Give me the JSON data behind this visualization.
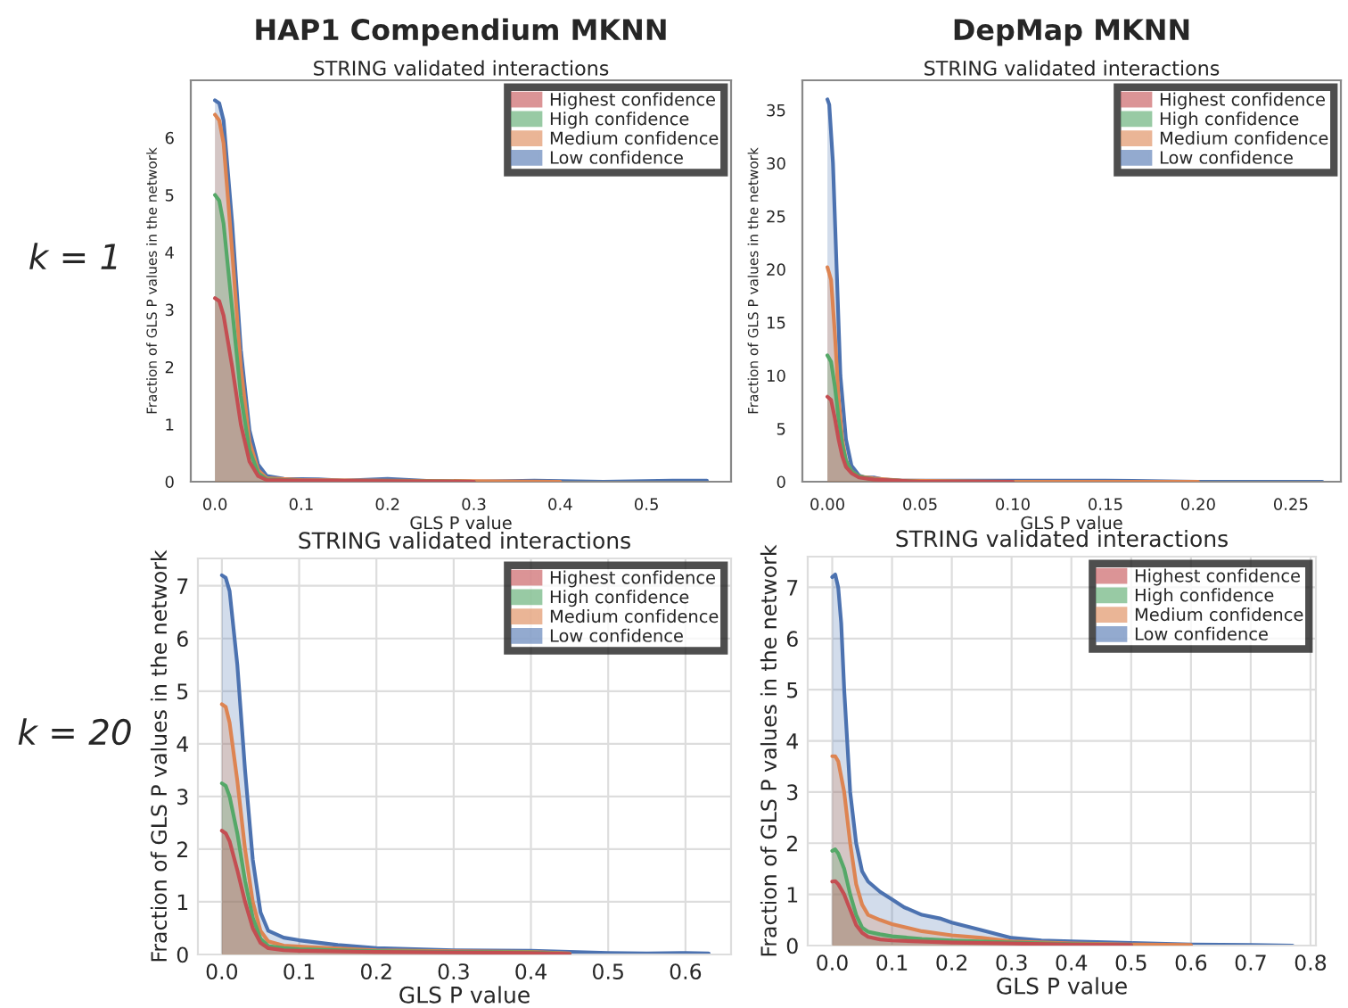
{
  "chart_data": [
    {
      "type": "area",
      "title": "HAP1 Compendium MKNN",
      "subtitle": "STRING validated interactions",
      "xlabel": "GLS P value",
      "ylabel": "Fraction of GLS P values in the network",
      "annotations": [
        "k = 1"
      ],
      "grid": false,
      "legend": "top right",
      "xlim": [
        -0.028,
        0.598
      ],
      "ylim": [
        0,
        7.0
      ],
      "xticks": [
        {
          "value": 0,
          "label": "0.0"
        },
        0.1,
        0.2,
        0.3,
        0.4,
        0.5
      ],
      "yticks": [
        0,
        1,
        2,
        3,
        4,
        5,
        6
      ],
      "series": [
        {
          "name": "Highest confidence",
          "color": "#c44e52",
          "x": [
            0,
            0.005,
            0.01,
            0.02,
            0.03,
            0.04,
            0.05,
            0.06,
            0.1,
            0.2,
            0.3
          ],
          "values": [
            3.2,
            3.15,
            2.9,
            2.0,
            1.0,
            0.35,
            0.1,
            0.03,
            0.02,
            0.01,
            0
          ]
        },
        {
          "name": "High confidence",
          "color": "#55a868",
          "x": [
            0,
            0.005,
            0.01,
            0.02,
            0.03,
            0.04,
            0.05,
            0.06,
            0.1,
            0.2,
            0.3
          ],
          "values": [
            5.0,
            4.9,
            4.5,
            3.0,
            1.5,
            0.55,
            0.15,
            0.04,
            0.02,
            0.01,
            0
          ]
        },
        {
          "name": "Medium confidence",
          "color": "#dd8452",
          "x": [
            0,
            0.005,
            0.01,
            0.02,
            0.03,
            0.04,
            0.05,
            0.06,
            0.1,
            0.2,
            0.3,
            0.4
          ],
          "values": [
            6.4,
            6.3,
            5.9,
            4.0,
            2.0,
            0.7,
            0.2,
            0.06,
            0.03,
            0.02,
            0.01,
            0
          ]
        },
        {
          "name": "Low confidence",
          "color": "#4c72b0",
          "x": [
            0,
            0.005,
            0.01,
            0.02,
            0.03,
            0.04,
            0.05,
            0.06,
            0.08,
            0.12,
            0.15,
            0.2,
            0.25,
            0.3,
            0.37,
            0.45,
            0.53,
            0.57
          ],
          "values": [
            6.65,
            6.6,
            6.3,
            4.5,
            2.3,
            0.9,
            0.3,
            0.1,
            0.05,
            0.04,
            0.02,
            0.05,
            0.01,
            0,
            0.02,
            0,
            0.02,
            0.02
          ]
        }
      ]
    },
    {
      "type": "area",
      "title": "DepMap MKNN",
      "subtitle": "STRING validated interactions",
      "xlabel": "GLS P value",
      "ylabel": "Fraction of GLS P values in the network",
      "grid": false,
      "legend": "top right",
      "xlim": [
        -0.0135,
        0.277
      ],
      "ylim": [
        0,
        37.8
      ],
      "xticks": [
        {
          "value": 0,
          "label": "0.00"
        },
        {
          "value": 0.05,
          "label": "0.05"
        },
        {
          "value": 0.1,
          "label": "0.10"
        },
        {
          "value": 0.15,
          "label": "0.15"
        },
        {
          "value": 0.2,
          "label": "0.20"
        },
        {
          "value": 0.25,
          "label": "0.25"
        }
      ],
      "yticks": [
        0,
        5,
        10,
        15,
        20,
        25,
        30,
        35
      ],
      "series": [
        {
          "name": "Highest confidence",
          "color": "#c44e52",
          "x": [
            0,
            0.002,
            0.004,
            0.006,
            0.008,
            0.01,
            0.013,
            0.017,
            0.025,
            0.05,
            0.1
          ],
          "values": [
            8,
            7.7,
            6,
            4,
            2.4,
            1.4,
            0.8,
            0.4,
            0.2,
            0,
            0
          ]
        },
        {
          "name": "High confidence",
          "color": "#55a868",
          "x": [
            0,
            0.002,
            0.004,
            0.006,
            0.008,
            0.01,
            0.013,
            0.017,
            0.025,
            0.05,
            0.1
          ],
          "values": [
            11.9,
            11.3,
            9,
            6,
            3.5,
            2,
            1,
            0.5,
            0.2,
            0,
            0
          ]
        },
        {
          "name": "Medium confidence",
          "color": "#dd8452",
          "x": [
            0,
            0.002,
            0.004,
            0.006,
            0.008,
            0.01,
            0.013,
            0.017,
            0.025,
            0.04,
            0.1,
            0.2
          ],
          "values": [
            20.2,
            19,
            14,
            8,
            4,
            2,
            1,
            0.5,
            0.3,
            0.1,
            0,
            0
          ]
        },
        {
          "name": "Low confidence",
          "color": "#4c72b0",
          "x": [
            0,
            0.001,
            0.003,
            0.005,
            0.007,
            0.01,
            0.013,
            0.017,
            0.02,
            0.025,
            0.03,
            0.04,
            0.06,
            0.1,
            0.15,
            0.2,
            0.267
          ],
          "values": [
            36,
            35.5,
            30,
            20,
            10,
            4,
            1.5,
            0.6,
            0.4,
            0.4,
            0.2,
            0.1,
            0.1,
            0.1,
            0.1,
            0,
            0
          ]
        }
      ]
    },
    {
      "type": "area",
      "title": "STRING validated interactions",
      "xlabel": "GLS P value",
      "ylabel": "Fraction of GLS P values in the network",
      "annotations": [
        "k = 20"
      ],
      "grid": true,
      "legend": "top right",
      "xlim": [
        -0.031,
        0.659
      ],
      "ylim": [
        0,
        7.52
      ],
      "xticks": [
        {
          "value": 0,
          "label": "0.0"
        },
        0.1,
        0.2,
        0.3,
        0.4,
        0.5,
        0.6
      ],
      "yticks": [
        0,
        1,
        2,
        3,
        4,
        5,
        6,
        7
      ],
      "series": [
        {
          "name": "Highest confidence",
          "color": "#c44e52",
          "x": [
            0,
            0.005,
            0.01,
            0.02,
            0.03,
            0.04,
            0.05,
            0.06,
            0.08,
            0.1,
            0.2,
            0.3,
            0.4,
            0.45
          ],
          "values": [
            2.35,
            2.3,
            2.15,
            1.6,
            1.0,
            0.5,
            0.22,
            0.12,
            0.08,
            0.07,
            0.05,
            0.04,
            0.03,
            0.01
          ]
        },
        {
          "name": "High confidence",
          "color": "#55a868",
          "x": [
            0,
            0.005,
            0.01,
            0.02,
            0.03,
            0.04,
            0.05,
            0.06,
            0.08,
            0.1,
            0.2,
            0.3,
            0.4,
            0.45
          ],
          "values": [
            3.25,
            3.2,
            3.0,
            2.3,
            1.4,
            0.7,
            0.3,
            0.16,
            0.12,
            0.1,
            0.06,
            0.05,
            0.04,
            0.01
          ]
        },
        {
          "name": "Medium confidence",
          "color": "#dd8452",
          "x": [
            0,
            0.005,
            0.01,
            0.02,
            0.03,
            0.04,
            0.05,
            0.06,
            0.08,
            0.1,
            0.2,
            0.3,
            0.4,
            0.45
          ],
          "values": [
            4.75,
            4.7,
            4.4,
            3.3,
            2.0,
            1.0,
            0.45,
            0.25,
            0.17,
            0.15,
            0.08,
            0.06,
            0.05,
            0.02
          ]
        },
        {
          "name": "Low confidence",
          "color": "#4c72b0",
          "x": [
            0,
            0.005,
            0.01,
            0.02,
            0.03,
            0.04,
            0.05,
            0.06,
            0.08,
            0.1,
            0.15,
            0.2,
            0.3,
            0.4,
            0.5,
            0.55,
            0.6,
            0.63
          ],
          "values": [
            7.2,
            7.15,
            6.9,
            5.5,
            3.5,
            1.8,
            0.8,
            0.45,
            0.32,
            0.27,
            0.18,
            0.12,
            0.08,
            0.07,
            0.03,
            0.02,
            0.03,
            0.02
          ]
        }
      ]
    },
    {
      "type": "area",
      "title": "STRING validated interactions",
      "xlabel": "GLS P value",
      "ylabel": "Fraction of GLS P values in the network",
      "grid": true,
      "legend": "top right",
      "xlim": [
        -0.041,
        0.809
      ],
      "ylim": [
        0,
        7.6
      ],
      "xticks": [
        {
          "value": 0,
          "label": "0.0"
        },
        0.1,
        0.2,
        0.3,
        0.4,
        0.5,
        0.6,
        0.7,
        0.8
      ],
      "yticks": [
        0,
        1,
        2,
        3,
        4,
        5,
        6,
        7
      ],
      "series": [
        {
          "name": "Highest confidence",
          "color": "#c44e52",
          "x": [
            0,
            0.005,
            0.01,
            0.02,
            0.03,
            0.04,
            0.05,
            0.06,
            0.08,
            0.1,
            0.2,
            0.3,
            0.4,
            0.5
          ],
          "values": [
            1.25,
            1.26,
            1.2,
            1.0,
            0.7,
            0.4,
            0.25,
            0.17,
            0.12,
            0.1,
            0.06,
            0.04,
            0.02,
            0.01
          ]
        },
        {
          "name": "High confidence",
          "color": "#55a868",
          "x": [
            0,
            0.005,
            0.01,
            0.02,
            0.03,
            0.04,
            0.05,
            0.06,
            0.08,
            0.1,
            0.15,
            0.2,
            0.3,
            0.4,
            0.5
          ],
          "values": [
            1.85,
            1.88,
            1.8,
            1.5,
            1.0,
            0.6,
            0.35,
            0.27,
            0.22,
            0.18,
            0.13,
            0.1,
            0.06,
            0.03,
            0.01
          ]
        },
        {
          "name": "Medium confidence",
          "color": "#dd8452",
          "x": [
            0,
            0.005,
            0.01,
            0.02,
            0.03,
            0.04,
            0.05,
            0.06,
            0.08,
            0.1,
            0.15,
            0.2,
            0.25,
            0.3,
            0.4,
            0.5,
            0.6
          ],
          "values": [
            3.7,
            3.7,
            3.6,
            3.0,
            2.0,
            1.2,
            0.8,
            0.6,
            0.5,
            0.42,
            0.28,
            0.2,
            0.15,
            0.08,
            0.04,
            0.02,
            0.01
          ]
        },
        {
          "name": "Low confidence",
          "color": "#4c72b0",
          "x": [
            0,
            0.005,
            0.01,
            0.015,
            0.02,
            0.03,
            0.04,
            0.05,
            0.06,
            0.08,
            0.1,
            0.12,
            0.15,
            0.18,
            0.2,
            0.25,
            0.3,
            0.35,
            0.4,
            0.5,
            0.6,
            0.7,
            0.77
          ],
          "values": [
            7.2,
            7.25,
            7.0,
            6.3,
            5.0,
            3.0,
            2.0,
            1.45,
            1.25,
            1.05,
            0.9,
            0.75,
            0.6,
            0.53,
            0.45,
            0.3,
            0.15,
            0.1,
            0.08,
            0.05,
            0.02,
            0.01,
            0
          ]
        }
      ]
    }
  ]
}
